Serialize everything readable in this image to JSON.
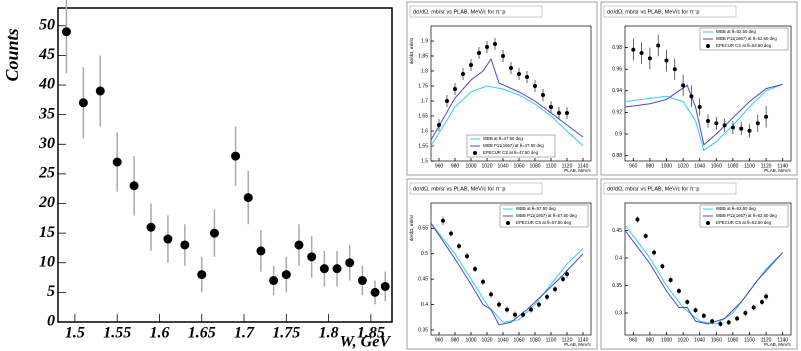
{
  "chart_data": [
    {
      "type": "scatter",
      "ylabel": "Counts",
      "xlabel": "W, GeV",
      "color": "#000000",
      "x": [
        1.49,
        1.51,
        1.53,
        1.55,
        1.57,
        1.59,
        1.61,
        1.63,
        1.65,
        1.665,
        1.69,
        1.705,
        1.72,
        1.735,
        1.75,
        1.765,
        1.78,
        1.795,
        1.81,
        1.825,
        1.84,
        1.855,
        1.867
      ],
      "values": [
        49,
        37,
        39,
        27,
        23,
        16,
        14,
        13,
        8,
        15,
        28,
        21,
        12,
        7,
        8,
        13,
        11,
        9,
        9,
        10,
        7,
        5,
        6
      ],
      "yerr": [
        7,
        6,
        6,
        5,
        5,
        4,
        4,
        3.5,
        3,
        4,
        5,
        4.5,
        3.5,
        2.5,
        3,
        3.5,
        3.5,
        3,
        3,
        3,
        2.5,
        2,
        2.5
      ],
      "xlim": [
        1.48,
        1.875
      ],
      "ylim": [
        0,
        53
      ],
      "xticks": [
        1.5,
        1.55,
        1.6,
        1.65,
        1.7,
        1.75,
        1.8,
        1.85
      ],
      "yticks": [
        0,
        5,
        10,
        15,
        20,
        25,
        30,
        35,
        40,
        45,
        50
      ]
    },
    {
      "type": "panel",
      "title": "dσ/dΩ, mb/sr vs PLAB, MeV/c for π⁻p",
      "ylabel": "dσ/dΩ, mb/sr",
      "xlabel": "PLAB, MeV/c",
      "legend": "lower center",
      "xlim": [
        950,
        1150
      ],
      "ylim": [
        1.5,
        1.95
      ],
      "xticks": [
        960,
        980,
        1000,
        1020,
        1040,
        1060,
        1080,
        1100,
        1120,
        1140
      ],
      "yticks": [
        1.5,
        1.55,
        1.6,
        1.65,
        1.7,
        1.75,
        1.8,
        1.85,
        1.9
      ],
      "series": [
        {
          "name": "WBB at θ=47.50 deg",
          "type": "line",
          "color": "#33ccee",
          "x": [
            950,
            980,
            1000,
            1020,
            1040,
            1060,
            1080,
            1100,
            1120,
            1140
          ],
          "values": [
            1.55,
            1.68,
            1.73,
            1.75,
            1.74,
            1.72,
            1.69,
            1.65,
            1.6,
            1.55
          ]
        },
        {
          "name": "WBB P11(1667) at θ=47.50 deg",
          "type": "line",
          "color": "#5544bb",
          "x": [
            950,
            980,
            1000,
            1015,
            1025,
            1035,
            1060,
            1080,
            1100,
            1120,
            1140
          ],
          "values": [
            1.57,
            1.71,
            1.77,
            1.8,
            1.84,
            1.76,
            1.73,
            1.7,
            1.66,
            1.62,
            1.58
          ]
        },
        {
          "name": "EPECUR CS at θ=47.50 deg",
          "type": "points",
          "color": "#000000",
          "x": [
            960,
            970,
            980,
            990,
            1000,
            1010,
            1020,
            1030,
            1040,
            1050,
            1060,
            1070,
            1080,
            1090,
            1100,
            1110,
            1120
          ],
          "values": [
            1.62,
            1.7,
            1.74,
            1.79,
            1.82,
            1.86,
            1.88,
            1.89,
            1.85,
            1.81,
            1.79,
            1.78,
            1.75,
            1.72,
            1.68,
            1.66,
            1.66
          ],
          "yerr": [
            0.02,
            0.02,
            0.02,
            0.02,
            0.02,
            0.02,
            0.02,
            0.02,
            0.02,
            0.02,
            0.02,
            0.02,
            0.02,
            0.02,
            0.02,
            0.02,
            0.02
          ]
        }
      ]
    },
    {
      "type": "panel",
      "title": "dσ/dΩ, mb/sr vs PLAB, MeV/c for π⁻p",
      "xlabel": "PLAB, MeV/c",
      "legend": "upper right",
      "xlim": [
        950,
        1150
      ],
      "ylim": [
        0.875,
        1.0
      ],
      "xticks": [
        960,
        980,
        1000,
        1020,
        1040,
        1060,
        1080,
        1100,
        1120,
        1140
      ],
      "yticks": [
        0.88,
        0.9,
        0.92,
        0.94,
        0.96,
        0.98
      ],
      "series": [
        {
          "name": "WBB at θ=52.50 deg",
          "type": "line",
          "color": "#33ccee",
          "x": [
            950,
            980,
            1000,
            1020,
            1035,
            1045,
            1060,
            1080,
            1100,
            1120,
            1140
          ],
          "values": [
            0.93,
            0.933,
            0.935,
            0.93,
            0.912,
            0.885,
            0.893,
            0.908,
            0.925,
            0.94,
            0.946
          ]
        },
        {
          "name": "WBB P11(1667) at θ=52.50 deg",
          "type": "line",
          "color": "#5544bb",
          "x": [
            950,
            980,
            1000,
            1015,
            1025,
            1035,
            1045,
            1060,
            1080,
            1100,
            1120,
            1140
          ],
          "values": [
            0.925,
            0.928,
            0.932,
            0.94,
            0.945,
            0.925,
            0.89,
            0.9,
            0.915,
            0.93,
            0.942,
            0.946
          ]
        },
        {
          "name": "EPECUR CS at θ=52.50 deg",
          "type": "points",
          "color": "#000000",
          "x": [
            960,
            970,
            980,
            990,
            1000,
            1010,
            1020,
            1030,
            1040,
            1050,
            1060,
            1070,
            1080,
            1090,
            1100,
            1110,
            1120
          ],
          "values": [
            0.978,
            0.975,
            0.97,
            0.982,
            0.968,
            0.96,
            0.945,
            0.935,
            0.925,
            0.912,
            0.91,
            0.908,
            0.906,
            0.905,
            0.903,
            0.91,
            0.916
          ],
          "yerr": [
            0.01,
            0.01,
            0.01,
            0.01,
            0.01,
            0.01,
            0.01,
            0.01,
            0.008,
            0.006,
            0.006,
            0.006,
            0.006,
            0.006,
            0.006,
            0.008,
            0.01
          ]
        }
      ]
    },
    {
      "type": "panel",
      "title": "dσ/dΩ, mb/sr vs PLAB, MeV/c for π⁻p",
      "ylabel": "dσ/dΩ, mb/sr",
      "xlabel": "PLAB, MeV/c",
      "legend": "upper right",
      "xlim": [
        950,
        1150
      ],
      "ylim": [
        0.34,
        0.6
      ],
      "xticks": [
        960,
        980,
        1000,
        1020,
        1040,
        1060,
        1080,
        1100,
        1120,
        1140
      ],
      "yticks": [
        0.35,
        0.4,
        0.45,
        0.5,
        0.55
      ],
      "series": [
        {
          "name": "WBB at θ=57.50 deg",
          "type": "line",
          "color": "#33ccee",
          "x": [
            950,
            980,
            1000,
            1020,
            1040,
            1060,
            1080,
            1100,
            1120,
            1140
          ],
          "values": [
            0.56,
            0.5,
            0.45,
            0.4,
            0.365,
            0.37,
            0.4,
            0.44,
            0.48,
            0.51
          ]
        },
        {
          "name": "WBB P11(1667) at θ=57.50 deg",
          "type": "line",
          "color": "#5544bb",
          "x": [
            950,
            980,
            1000,
            1015,
            1025,
            1035,
            1050,
            1070,
            1090,
            1110,
            1140
          ],
          "values": [
            0.56,
            0.49,
            0.44,
            0.4,
            0.39,
            0.36,
            0.365,
            0.39,
            0.42,
            0.45,
            0.5
          ]
        },
        {
          "name": "EPECUR CS at θ=57.50 deg",
          "type": "points",
          "color": "#000000",
          "x": [
            965,
            975,
            985,
            995,
            1005,
            1015,
            1025,
            1035,
            1045,
            1055,
            1065,
            1075,
            1085,
            1095,
            1105,
            1115,
            1120
          ],
          "values": [
            0.565,
            0.54,
            0.515,
            0.495,
            0.47,
            0.445,
            0.42,
            0.4,
            0.39,
            0.38,
            0.38,
            0.39,
            0.4,
            0.415,
            0.43,
            0.45,
            0.46
          ],
          "yerr": [
            0.008,
            0.006,
            0.006,
            0.006,
            0.006,
            0.006,
            0.006,
            0.006,
            0.006,
            0.006,
            0.006,
            0.006,
            0.006,
            0.006,
            0.006,
            0.006,
            0.008
          ]
        }
      ]
    },
    {
      "type": "panel",
      "title": "dσ/dΩ, mb/sr vs PLAB, MeV/c for π⁻p",
      "xlabel": "PLAB, MeV/c",
      "legend": "upper right",
      "xlim": [
        950,
        1150
      ],
      "ylim": [
        0.26,
        0.5
      ],
      "xticks": [
        960,
        980,
        1000,
        1020,
        1040,
        1060,
        1080,
        1100,
        1120,
        1140
      ],
      "yticks": [
        0.3,
        0.35,
        0.4,
        0.45
      ],
      "series": [
        {
          "name": "WBB at θ=62.50 deg",
          "type": "line",
          "color": "#33ccee",
          "x": [
            950,
            980,
            1000,
            1020,
            1040,
            1060,
            1080,
            1100,
            1120,
            1140
          ],
          "values": [
            0.46,
            0.4,
            0.35,
            0.31,
            0.285,
            0.28,
            0.3,
            0.34,
            0.38,
            0.41
          ]
        },
        {
          "name": "WBB P11(1667) at θ=62.50 deg",
          "type": "line",
          "color": "#5544bb",
          "x": [
            950,
            980,
            1000,
            1015,
            1025,
            1035,
            1050,
            1070,
            1090,
            1110,
            1140
          ],
          "values": [
            0.45,
            0.39,
            0.34,
            0.31,
            0.31,
            0.285,
            0.28,
            0.29,
            0.32,
            0.36,
            0.41
          ]
        },
        {
          "name": "EPECUR CS at θ=62.50 deg",
          "type": "points",
          "color": "#000000",
          "x": [
            965,
            975,
            985,
            995,
            1005,
            1015,
            1025,
            1035,
            1045,
            1055,
            1065,
            1075,
            1085,
            1095,
            1105,
            1115,
            1120
          ],
          "values": [
            0.47,
            0.44,
            0.41,
            0.385,
            0.36,
            0.34,
            0.32,
            0.305,
            0.295,
            0.285,
            0.28,
            0.283,
            0.29,
            0.3,
            0.31,
            0.32,
            0.33
          ],
          "yerr": [
            0.006,
            0.005,
            0.005,
            0.005,
            0.005,
            0.005,
            0.005,
            0.005,
            0.005,
            0.005,
            0.005,
            0.005,
            0.005,
            0.005,
            0.005,
            0.005,
            0.006
          ]
        }
      ]
    }
  ]
}
